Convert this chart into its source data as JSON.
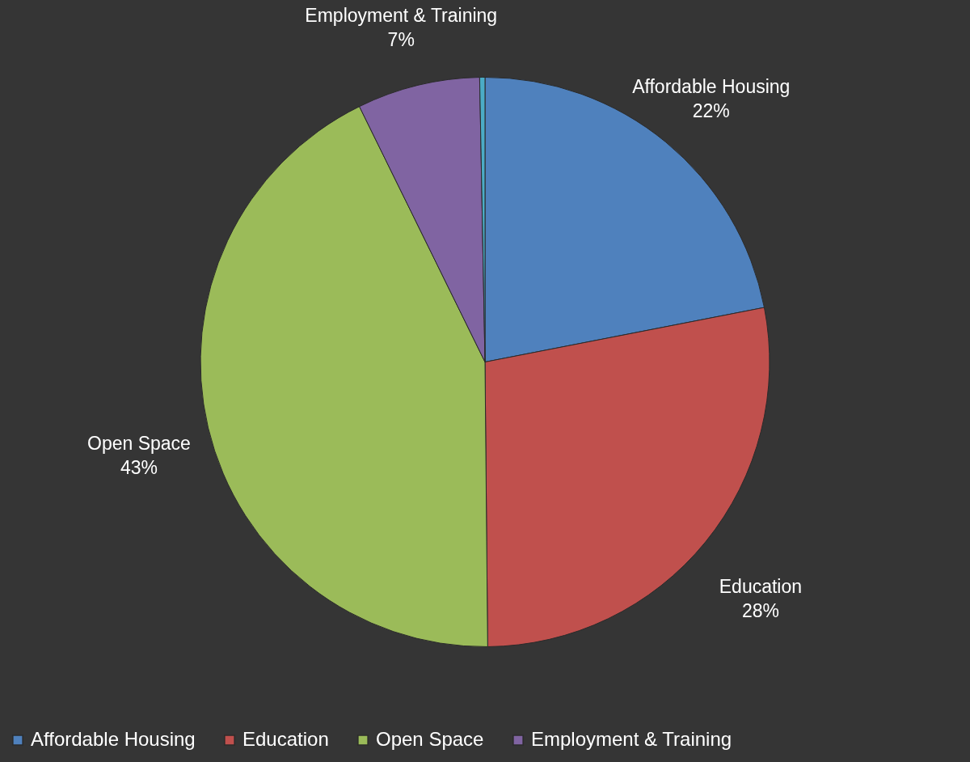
{
  "chart_data": {
    "type": "pie",
    "categories": [
      "Affordable Housing",
      "Education",
      "Open Space",
      "Employment & Training",
      null
    ],
    "values": [
      22,
      28,
      43,
      7,
      0.3
    ],
    "colors": [
      "#4f81bd",
      "#c0504d",
      "#9bbb59",
      "#8064a2",
      "#4bacc6"
    ],
    "value_labels": [
      "22%",
      "28%",
      "43%",
      "7%",
      null
    ],
    "legend": "bottom"
  }
}
